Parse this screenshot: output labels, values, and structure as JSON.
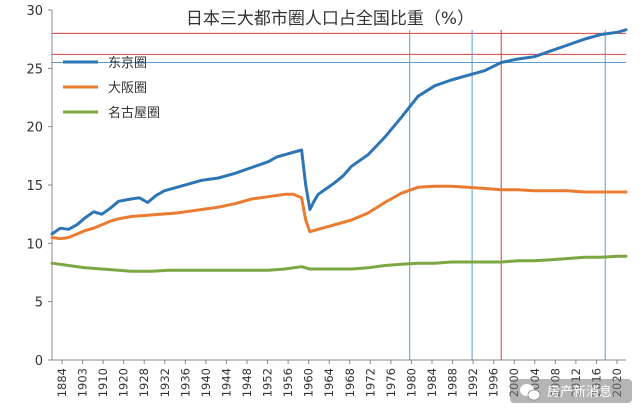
{
  "chart_data": {
    "type": "line",
    "title": "日本三大都市圈人口占全国比重（%）",
    "xlabel": "",
    "ylabel": "",
    "xlim": [
      1884,
      2022
    ],
    "ylim": [
      0,
      30
    ],
    "yticks": [
      0,
      5,
      10,
      15,
      20,
      25,
      30
    ],
    "xticks": [
      "1884",
      "1903",
      "1910",
      "1920",
      "1928",
      "1932",
      "1936",
      "1940",
      "1944",
      "1948",
      "1952",
      "1956",
      "1960",
      "1964",
      "1968",
      "1972",
      "1976",
      "1980",
      "1984",
      "1988",
      "1992",
      "1996",
      "2000",
      "2004",
      "2008",
      "2012",
      "2016",
      "2020"
    ],
    "grid": false,
    "legend_position": "top-left",
    "series": [
      {
        "name": "东京圈",
        "color": "#2E75B6",
        "points": [
          [
            1884,
            10.8
          ],
          [
            1886,
            11.3
          ],
          [
            1888,
            11.2
          ],
          [
            1890,
            11.6
          ],
          [
            1892,
            12.2
          ],
          [
            1894,
            12.7
          ],
          [
            1896,
            12.5
          ],
          [
            1898,
            13.0
          ],
          [
            1900,
            13.6
          ],
          [
            1903,
            13.8
          ],
          [
            1905,
            13.9
          ],
          [
            1907,
            13.5
          ],
          [
            1909,
            14.1
          ],
          [
            1911,
            14.5
          ],
          [
            1914,
            14.8
          ],
          [
            1917,
            15.1
          ],
          [
            1920,
            15.4
          ],
          [
            1924,
            15.6
          ],
          [
            1928,
            16.0
          ],
          [
            1932,
            16.5
          ],
          [
            1936,
            17.0
          ],
          [
            1938,
            17.4
          ],
          [
            1940,
            17.6
          ],
          [
            1942,
            17.8
          ],
          [
            1944,
            18.0
          ],
          [
            1945,
            15.0
          ],
          [
            1946,
            12.9
          ],
          [
            1947,
            13.6
          ],
          [
            1948,
            14.2
          ],
          [
            1950,
            14.7
          ],
          [
            1952,
            15.2
          ],
          [
            1954,
            15.8
          ],
          [
            1956,
            16.6
          ],
          [
            1960,
            17.6
          ],
          [
            1964,
            19.1
          ],
          [
            1968,
            20.8
          ],
          [
            1972,
            22.6
          ],
          [
            1976,
            23.5
          ],
          [
            1980,
            24.0
          ],
          [
            1984,
            24.4
          ],
          [
            1988,
            24.8
          ],
          [
            1992,
            25.5
          ],
          [
            1996,
            25.8
          ],
          [
            2000,
            26.0
          ],
          [
            2004,
            26.5
          ],
          [
            2008,
            27.0
          ],
          [
            2012,
            27.5
          ],
          [
            2016,
            27.9
          ],
          [
            2020,
            28.1
          ],
          [
            2022,
            28.3
          ]
        ]
      },
      {
        "name": "大阪圈",
        "color": "#E97C30",
        "points": [
          [
            1884,
            10.5
          ],
          [
            1886,
            10.4
          ],
          [
            1888,
            10.5
          ],
          [
            1890,
            10.8
          ],
          [
            1892,
            11.1
          ],
          [
            1894,
            11.3
          ],
          [
            1896,
            11.6
          ],
          [
            1898,
            11.9
          ],
          [
            1900,
            12.1
          ],
          [
            1903,
            12.3
          ],
          [
            1907,
            12.4
          ],
          [
            1910,
            12.5
          ],
          [
            1914,
            12.6
          ],
          [
            1918,
            12.8
          ],
          [
            1920,
            12.9
          ],
          [
            1924,
            13.1
          ],
          [
            1928,
            13.4
          ],
          [
            1932,
            13.8
          ],
          [
            1936,
            14.0
          ],
          [
            1940,
            14.2
          ],
          [
            1942,
            14.2
          ],
          [
            1944,
            13.9
          ],
          [
            1945,
            12.0
          ],
          [
            1946,
            11.0
          ],
          [
            1948,
            11.2
          ],
          [
            1952,
            11.6
          ],
          [
            1956,
            12.0
          ],
          [
            1960,
            12.6
          ],
          [
            1964,
            13.5
          ],
          [
            1968,
            14.3
          ],
          [
            1972,
            14.8
          ],
          [
            1976,
            14.9
          ],
          [
            1980,
            14.9
          ],
          [
            1984,
            14.8
          ],
          [
            1988,
            14.7
          ],
          [
            1992,
            14.6
          ],
          [
            1996,
            14.6
          ],
          [
            2000,
            14.5
          ],
          [
            2004,
            14.5
          ],
          [
            2008,
            14.5
          ],
          [
            2012,
            14.4
          ],
          [
            2016,
            14.4
          ],
          [
            2020,
            14.4
          ],
          [
            2022,
            14.4
          ]
        ]
      },
      {
        "name": "名古屋圈",
        "color": "#7CA742",
        "points": [
          [
            1884,
            8.3
          ],
          [
            1888,
            8.1
          ],
          [
            1892,
            7.9
          ],
          [
            1896,
            7.8
          ],
          [
            1900,
            7.7
          ],
          [
            1903,
            7.6
          ],
          [
            1908,
            7.6
          ],
          [
            1912,
            7.7
          ],
          [
            1920,
            7.7
          ],
          [
            1928,
            7.7
          ],
          [
            1936,
            7.7
          ],
          [
            1940,
            7.8
          ],
          [
            1942,
            7.9
          ],
          [
            1944,
            8.0
          ],
          [
            1946,
            7.8
          ],
          [
            1950,
            7.8
          ],
          [
            1956,
            7.8
          ],
          [
            1960,
            7.9
          ],
          [
            1964,
            8.1
          ],
          [
            1968,
            8.2
          ],
          [
            1972,
            8.3
          ],
          [
            1976,
            8.3
          ],
          [
            1980,
            8.4
          ],
          [
            1984,
            8.4
          ],
          [
            1988,
            8.4
          ],
          [
            1992,
            8.4
          ],
          [
            1996,
            8.5
          ],
          [
            2000,
            8.5
          ],
          [
            2004,
            8.6
          ],
          [
            2008,
            8.7
          ],
          [
            2012,
            8.8
          ],
          [
            2016,
            8.8
          ],
          [
            2020,
            8.9
          ],
          [
            2022,
            8.9
          ]
        ]
      }
    ],
    "reference_lines": [
      {
        "kind": "horizontal",
        "value": 28.0,
        "color": "#D9403A"
      },
      {
        "kind": "horizontal",
        "value": 26.2,
        "color": "#D9403A"
      },
      {
        "kind": "horizontal",
        "value": 25.5,
        "color": "#5B9BD5"
      },
      {
        "kind": "vertical",
        "value": 1970,
        "color": "#5B9BD5"
      },
      {
        "kind": "vertical",
        "value": 1985,
        "color": "#5B9BD5"
      },
      {
        "kind": "vertical",
        "value": 1992,
        "color": "#D9403A"
      },
      {
        "kind": "vertical",
        "value": 2017,
        "color": "#5B9BD5"
      }
    ]
  },
  "watermark": {
    "text": "房产新消息",
    "icon": "wechat-icon"
  }
}
